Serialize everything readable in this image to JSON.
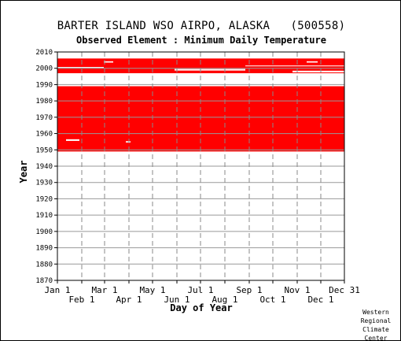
{
  "chart_data": {
    "type": "heatmap",
    "title": "BARTER ISLAND WSO AIRPO, ALASKA   (500558)",
    "subtitle": "Observed Element : Minimum Daily Temperature",
    "xlabel": "Day of Year",
    "ylabel": "Year",
    "ylim": [
      1870,
      2010
    ],
    "yticks": [
      1870,
      1880,
      1890,
      1900,
      1910,
      1920,
      1930,
      1940,
      1950,
      1960,
      1970,
      1980,
      1990,
      2000,
      2010
    ],
    "xlim": [
      1,
      366
    ],
    "xticks_top_row": [
      {
        "label": "Jan 1",
        "day": 1
      },
      {
        "label": "Mar 1",
        "day": 61
      },
      {
        "label": "May 1",
        "day": 122
      },
      {
        "label": "Jul 1",
        "day": 183
      },
      {
        "label": "Sep 1",
        "day": 245
      },
      {
        "label": "Nov 1",
        "day": 306
      },
      {
        "label": "Dec 31",
        "day": 366
      }
    ],
    "xticks_bottom_row": [
      {
        "label": "Feb 1",
        "day": 32
      },
      {
        "label": "Apr 1",
        "day": 92
      },
      {
        "label": "Jun 1",
        "day": 153
      },
      {
        "label": "Aug 1",
        "day": 214
      },
      {
        "label": "Oct 1",
        "day": 275
      },
      {
        "label": "Dec 1",
        "day": 336
      }
    ],
    "grid": true,
    "data_color": "#ff0000",
    "data_blocks": [
      {
        "year_start": 1949,
        "year_end": 1988,
        "day_start": 1,
        "day_end": 366
      },
      {
        "year_start": 1997,
        "year_end": 2005,
        "day_start": 1,
        "day_end": 366
      }
    ],
    "gaps": [
      {
        "year_start": 1955.5,
        "year_end": 1956.5,
        "day_start": 12,
        "day_end": 29
      },
      {
        "year_start": 1954.5,
        "year_end": 1955.3,
        "day_start": 88,
        "day_end": 94
      },
      {
        "year_start": 2003.5,
        "year_end": 2004.3,
        "day_start": 60,
        "day_end": 72
      },
      {
        "year_start": 2003.5,
        "year_end": 2004.3,
        "day_start": 318,
        "day_end": 332
      },
      {
        "year_start": 2000.2,
        "year_end": 2000.8,
        "day_start": 1,
        "day_end": 60
      },
      {
        "year_start": 1998.6,
        "year_end": 1999.6,
        "day_start": 150,
        "day_end": 240
      },
      {
        "year_start": 1997.5,
        "year_end": 1998.5,
        "day_start": 300,
        "day_end": 366
      },
      {
        "year_start": 2001.2,
        "year_end": 2001.7,
        "day_start": 240,
        "day_end": 366
      }
    ]
  },
  "credit": "Western\nRegional\nClimate\nCenter"
}
